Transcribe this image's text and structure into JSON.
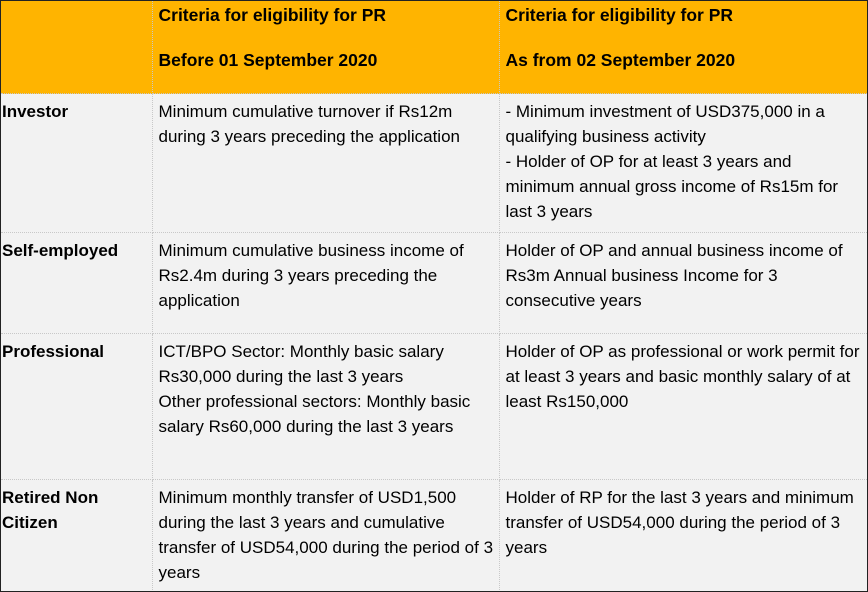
{
  "header": {
    "col0": "",
    "col1": {
      "line1": "Criteria for eligibility for PR",
      "line2": "Before 01 September 2020"
    },
    "col2": {
      "line1": "Criteria for eligibility for PR",
      "line2": "As from 02 September 2020"
    }
  },
  "rows": [
    {
      "category": "Investor",
      "before": [
        "Minimum cumulative turnover if Rs12m during 3 years preceding the application"
      ],
      "after": [
        "- Minimum investment of USD375,000 in a qualifying business activity",
        "- Holder of OP for at least 3 years and minimum annual gross income of Rs15m for last 3 years"
      ]
    },
    {
      "category": "Self-employed",
      "before": [
        "Minimum cumulative business income of Rs2.4m during 3 years preceding the application"
      ],
      "after": [
        "Holder of OP and annual business income of Rs3m Annual business Income for 3 consecutive years"
      ]
    },
    {
      "category": "Professional",
      "before": [
        "ICT/BPO Sector: Monthly basic salary Rs30,000 during the last  3 years",
        "Other professional sectors: Monthly basic salary Rs60,000 during the last 3 years"
      ],
      "after": [
        "Holder of OP as professional or work permit for at least 3 years and basic monthly salary of at least Rs150,000"
      ]
    },
    {
      "category": "Retired Non Citizen",
      "before": [
        "Minimum monthly transfer of USD1,500 during the last 3 years and cumulative transfer of USD54,000 during the period of 3 years"
      ],
      "after": [
        "Holder of RP for the last 3 years and minimum transfer of USD54,000 during the period of 3 years"
      ]
    }
  ],
  "colors": {
    "header_bg": "#ffb400",
    "body_bg": "#f2f2f2",
    "text": "#000000"
  }
}
